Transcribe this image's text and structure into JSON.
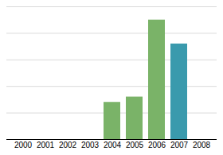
{
  "chart_data": {
    "type": "bar",
    "categories": [
      "2000",
      "2001",
      "2002",
      "2003",
      "2004",
      "2005",
      "2006",
      "2007",
      "2008"
    ],
    "values": [
      0,
      0,
      0,
      0,
      28,
      32,
      90,
      72,
      0
    ],
    "colors": [
      "#7ab368",
      "#7ab368",
      "#7ab368",
      "#7ab368",
      "#7ab368",
      "#7ab368",
      "#7ab368",
      "#3a9aad",
      "#7ab368"
    ],
    "ylim": [
      0,
      100
    ],
    "yticks": [
      20,
      40,
      60,
      80,
      100
    ],
    "grid": true,
    "tick_labels": "x"
  }
}
